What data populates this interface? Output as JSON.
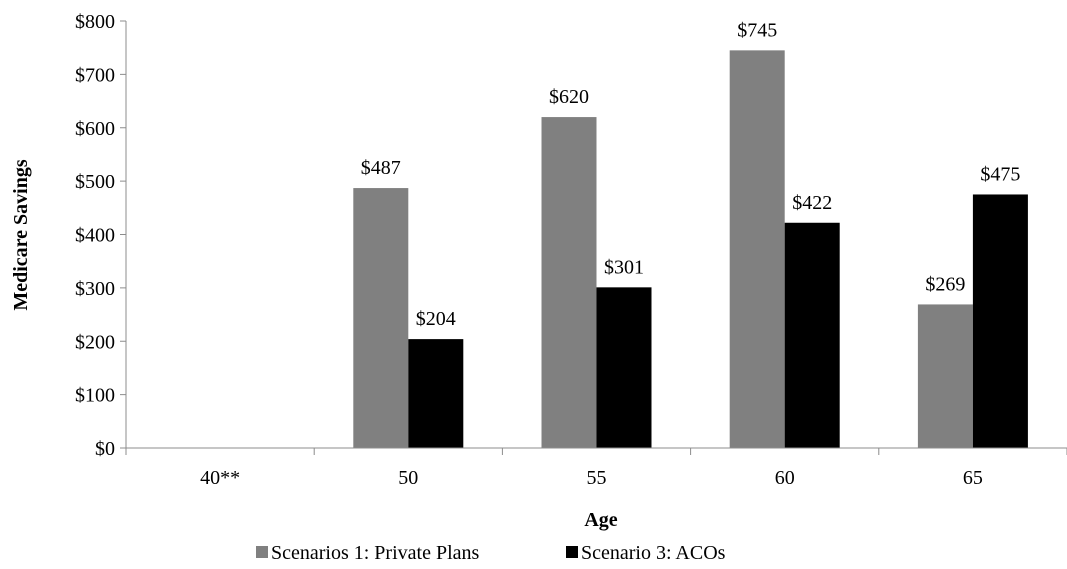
{
  "chart_data": {
    "type": "bar",
    "title": "",
    "xlabel": "Age",
    "ylabel": "Medicare Savings",
    "categories": [
      "40**",
      "50",
      "55",
      "60",
      "65"
    ],
    "series": [
      {
        "name": "Scenarios 1: Private Plans",
        "color": "#808080",
        "values": [
          null,
          487,
          620,
          745,
          269
        ],
        "labels": [
          "",
          "$487",
          "$620",
          "$745",
          "$269"
        ]
      },
      {
        "name": "Scenario 3: ACOs",
        "color": "#000000",
        "values": [
          null,
          204,
          301,
          422,
          475
        ],
        "labels": [
          "",
          "$204",
          "$301",
          "$422",
          "$475"
        ]
      }
    ],
    "ylim": [
      0,
      800
    ],
    "yticks": [
      0,
      100,
      200,
      300,
      400,
      500,
      600,
      700,
      800
    ],
    "ytick_labels": [
      "$0",
      "$100",
      "$200",
      "$300",
      "$400",
      "$500",
      "$600",
      "$700",
      "$800"
    ],
    "grid": false,
    "legend_position": "bottom"
  }
}
